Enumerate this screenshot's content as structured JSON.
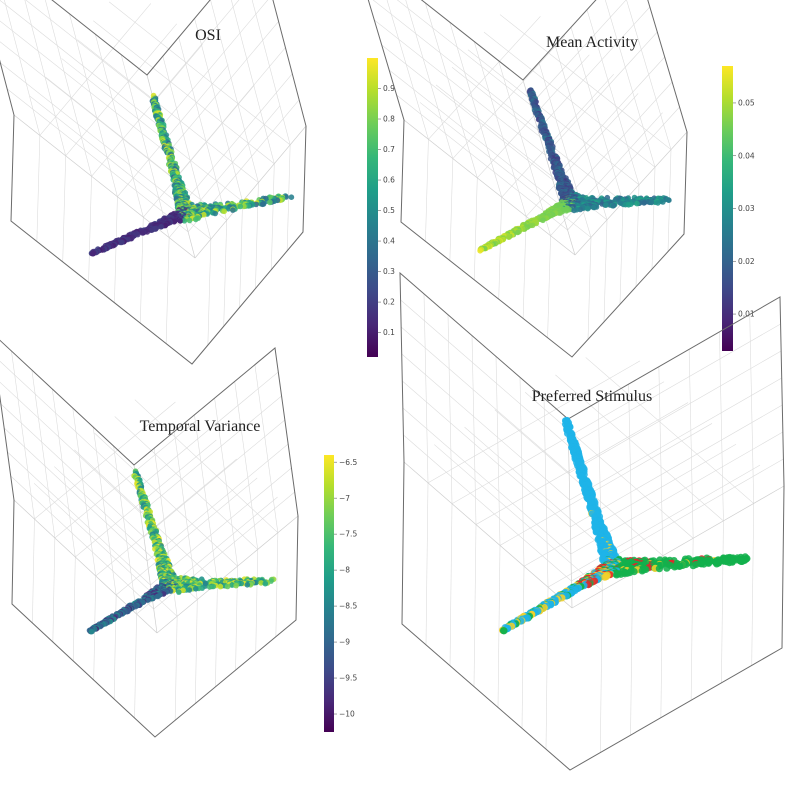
{
  "figure": {
    "type": "3d-scatter-grid"
  },
  "chart_data": [
    {
      "type": "scatter",
      "title": "OSI",
      "colormap": "viridis",
      "colorbar": {
        "range": [
          0.02,
          1.0
        ],
        "ticks": [
          "0.9",
          "0.8",
          "0.7",
          "0.6",
          "0.5",
          "0.4",
          "0.3",
          "0.2",
          "0.1"
        ],
        "tick_values": [
          0.9,
          0.8,
          0.7,
          0.6,
          0.5,
          0.4,
          0.3,
          0.2,
          0.1
        ]
      }
    },
    {
      "type": "scatter",
      "title": "Mean Activity",
      "colormap": "viridis",
      "colorbar": {
        "range": [
          0.003,
          0.057
        ],
        "ticks": [
          "0.05",
          "0.04",
          "0.03",
          "0.02",
          "0.01"
        ],
        "tick_values": [
          0.05,
          0.04,
          0.03,
          0.02,
          0.01
        ]
      }
    },
    {
      "type": "scatter",
      "title": "Temporal Variance",
      "colormap": "viridis",
      "colorbar": {
        "range": [
          -10.25,
          -6.4
        ],
        "ticks": [
          "−6.5",
          "−7",
          "−7.5",
          "−8",
          "−8.5",
          "−9",
          "−9.5",
          "−10"
        ],
        "tick_values": [
          -6.5,
          -7,
          -7.5,
          -8,
          -8.5,
          -9,
          -9.5,
          -10
        ]
      }
    },
    {
      "type": "scatter",
      "title": "Preferred Stimulus",
      "colormap": "categorical",
      "categories_colors": [
        "#1fb4e8",
        "#12b04c",
        "#e3262a",
        "#f2d02b"
      ]
    }
  ],
  "colors": {
    "cube_edge": "#6b6b6b",
    "grid": "#dcdcdc"
  }
}
